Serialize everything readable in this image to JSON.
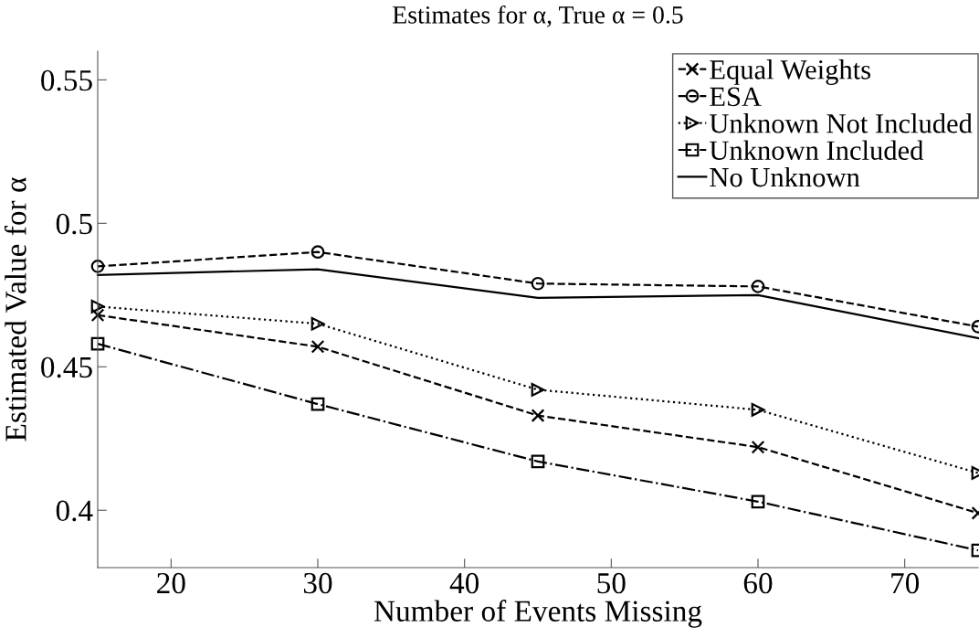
{
  "chart_data": {
    "type": "line",
    "title": "Estimates for α, True α = 0.5",
    "xlabel": "Number of Events Missing",
    "ylabel": "Estimated Value for α",
    "x": [
      15,
      30,
      45,
      60,
      75
    ],
    "series": [
      {
        "name": "Equal Weights",
        "color": "#000000",
        "marker": "cross",
        "line_style": "dashed",
        "values": [
          0.468,
          0.457,
          0.433,
          0.422,
          0.399
        ]
      },
      {
        "name": "ESA",
        "color": "#000000",
        "marker": "circle",
        "line_style": "dashed",
        "values": [
          0.485,
          0.49,
          0.479,
          0.478,
          0.464
        ]
      },
      {
        "name": "Unknown Not Included",
        "color": "#000000",
        "marker": "triangle",
        "line_style": "dotted",
        "values": [
          0.471,
          0.465,
          0.442,
          0.435,
          0.413
        ]
      },
      {
        "name": "Unknown Included",
        "color": "#000000",
        "marker": "square",
        "line_style": "dashdot",
        "values": [
          0.458,
          0.437,
          0.417,
          0.403,
          0.386
        ]
      },
      {
        "name": "No Unknown",
        "color": "#000000",
        "marker": "none",
        "line_style": "solid",
        "values": [
          0.482,
          0.484,
          0.474,
          0.475,
          0.46
        ]
      }
    ],
    "xlim": [
      15,
      75
    ],
    "xticks": [
      20,
      30,
      40,
      50,
      60,
      70
    ],
    "ylim": [
      0.38,
      0.56
    ],
    "yticks": [
      0.4,
      0.45,
      0.5,
      0.55
    ],
    "grid": false,
    "legend": "top right"
  }
}
